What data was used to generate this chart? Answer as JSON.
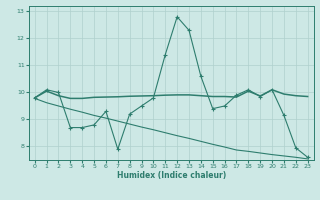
{
  "xlabel": "Humidex (Indice chaleur)",
  "x": [
    0,
    1,
    2,
    3,
    4,
    5,
    6,
    7,
    8,
    9,
    10,
    11,
    12,
    13,
    14,
    15,
    16,
    17,
    18,
    19,
    20,
    21,
    22,
    23
  ],
  "line1": [
    9.8,
    10.1,
    10.0,
    8.7,
    8.7,
    8.8,
    9.3,
    7.9,
    9.2,
    9.5,
    9.8,
    11.4,
    12.8,
    12.3,
    10.6,
    9.4,
    9.5,
    9.9,
    10.1,
    9.85,
    10.1,
    9.15,
    7.95,
    7.6
  ],
  "line2": [
    9.8,
    10.05,
    9.88,
    9.78,
    9.78,
    9.82,
    9.83,
    9.84,
    9.86,
    9.87,
    9.88,
    9.9,
    9.91,
    9.91,
    9.88,
    9.85,
    9.85,
    9.83,
    10.05,
    9.87,
    10.1,
    9.94,
    9.88,
    9.85
  ],
  "line3": [
    9.78,
    9.62,
    9.5,
    9.38,
    9.27,
    9.15,
    9.05,
    8.94,
    8.83,
    8.72,
    8.62,
    8.51,
    8.4,
    8.3,
    8.19,
    8.08,
    7.98,
    7.87,
    7.82,
    7.76,
    7.7,
    7.65,
    7.6,
    7.54
  ],
  "line_color": "#2e7d6e",
  "bg_color": "#cde8e5",
  "grid_color": "#b0d0ce",
  "ylim": [
    7.5,
    13.2
  ],
  "yticks": [
    8,
    9,
    10,
    11,
    12,
    13
  ],
  "xticks": [
    0,
    1,
    2,
    3,
    4,
    5,
    6,
    7,
    8,
    9,
    10,
    11,
    12,
    13,
    14,
    15,
    16,
    17,
    18,
    19,
    20,
    21,
    22,
    23
  ]
}
